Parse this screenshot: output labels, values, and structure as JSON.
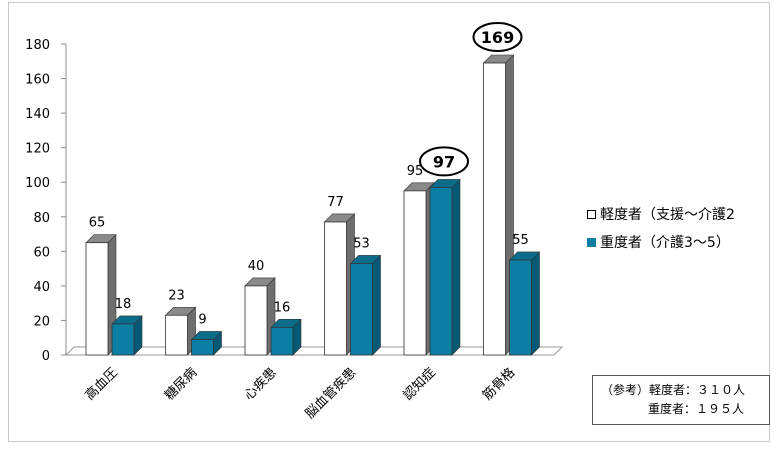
{
  "chart_data": {
    "type": "bar",
    "categories": [
      "高血圧",
      "糖尿病",
      "心疾患",
      "脳血管疾患",
      "認知症",
      "筋骨格"
    ],
    "series": [
      {
        "name": "軽度者（支援～介護2",
        "color": "#ffffff",
        "values": [
          65,
          23,
          40,
          77,
          95,
          169
        ]
      },
      {
        "name": "重度者（介護3～5）",
        "color": "#0b7ea3",
        "values": [
          18,
          9,
          16,
          53,
          97,
          55
        ]
      }
    ],
    "yticks": [
      "0",
      "20",
      "40",
      "60",
      "80",
      "100",
      "120",
      "140",
      "160",
      "180"
    ],
    "ylim": [
      0,
      180
    ],
    "highlighted": [
      "97",
      "169"
    ],
    "legend_position": "right"
  },
  "note": {
    "line1": "（参考）軽度者：３１０人",
    "line2": "重度者：１９５人"
  }
}
